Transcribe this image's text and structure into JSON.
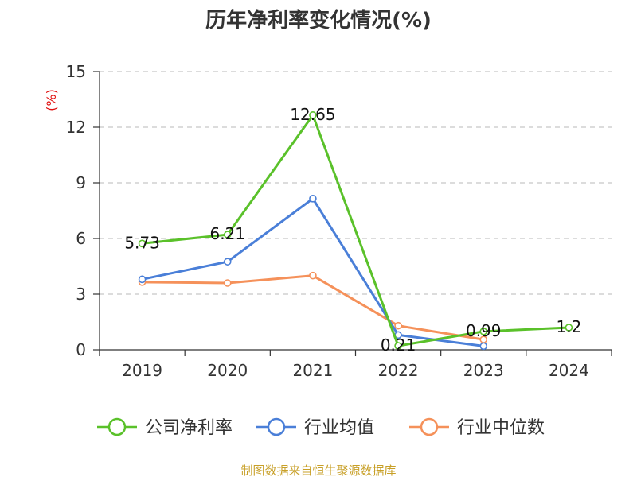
{
  "chart_data": {
    "type": "line",
    "title": "历年净利率变化情况(%)",
    "ylabel": "(%)",
    "xlabel": "",
    "categories": [
      "2019",
      "2020",
      "2021",
      "2022",
      "2023",
      "2024"
    ],
    "ylim": [
      0,
      15
    ],
    "yticks": [
      "0",
      "3",
      "6",
      "9",
      "12",
      "15"
    ],
    "grid": true,
    "legend_position": "bottom",
    "series": [
      {
        "name": "公司净利率",
        "color": "#5ac12a",
        "values": [
          5.73,
          6.21,
          12.65,
          0.21,
          0.99,
          1.2
        ],
        "labels": [
          "5.73",
          "6.21",
          "12.65",
          "0.21",
          "0.99",
          "1.2"
        ]
      },
      {
        "name": "行业均值",
        "color": "#4a7fd8",
        "values": [
          3.8,
          4.75,
          8.15,
          0.8,
          0.2,
          null
        ]
      },
      {
        "name": "行业中位数",
        "color": "#f5915a",
        "values": [
          3.65,
          3.6,
          4.0,
          1.3,
          0.55,
          null
        ]
      }
    ]
  },
  "source": "制图数据来自恒生聚源数据库"
}
